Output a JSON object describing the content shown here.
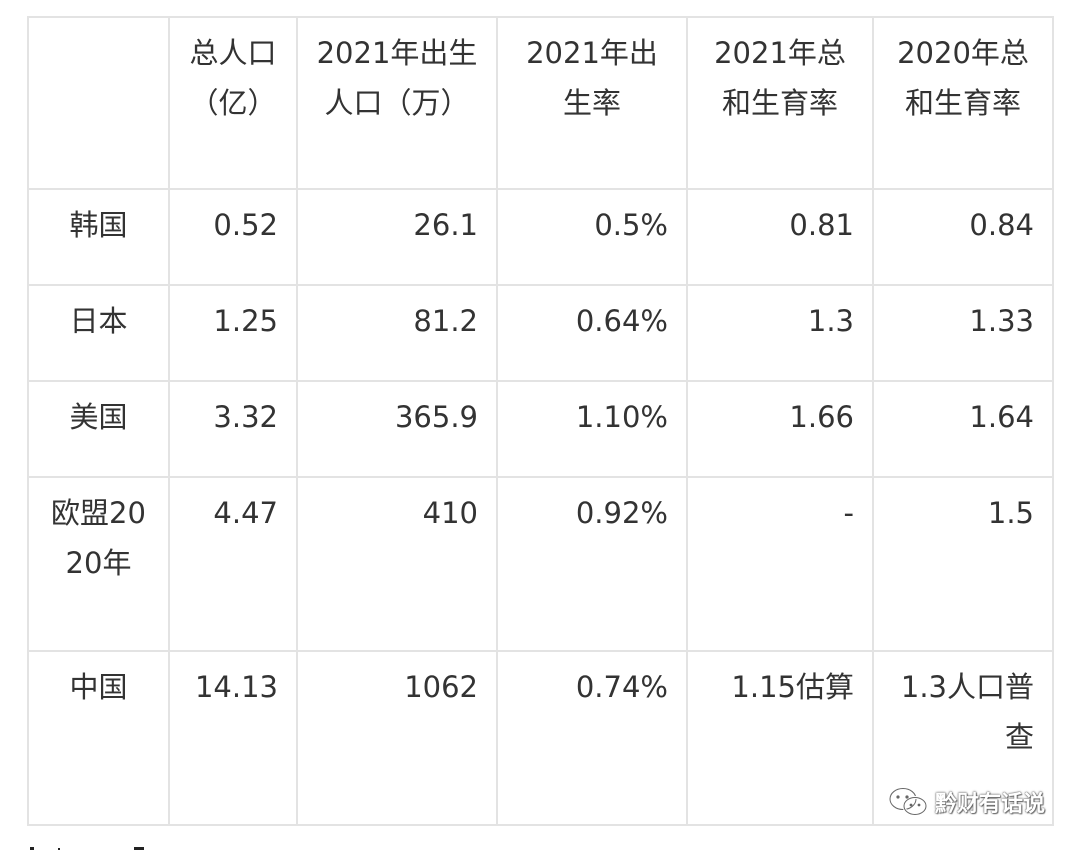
{
  "table": {
    "headers": [
      "",
      "总人口（亿）",
      "2021年出生人口（万）",
      "2021年出生率",
      "2021年总和生育率",
      "2020年总和生育率"
    ],
    "rows": [
      [
        "韩国",
        "0.52",
        "26.1",
        "0.5%",
        "0.81",
        "0.84"
      ],
      [
        "日本",
        "1.25",
        "81.2",
        "0.64%",
        "1.3",
        "1.33"
      ],
      [
        "美国",
        "3.32",
        "365.9",
        "1.10%",
        "1.66",
        "1.64"
      ],
      [
        "欧盟2020年",
        "4.47",
        "410",
        "0.92%",
        "-",
        "1.5"
      ],
      [
        "中国",
        "14.13",
        "1062",
        "0.74%",
        "1.15估算",
        "1.3人口普查"
      ]
    ]
  },
  "watermark": {
    "text": "黔财有话说",
    "icon": "wechat-icon"
  }
}
